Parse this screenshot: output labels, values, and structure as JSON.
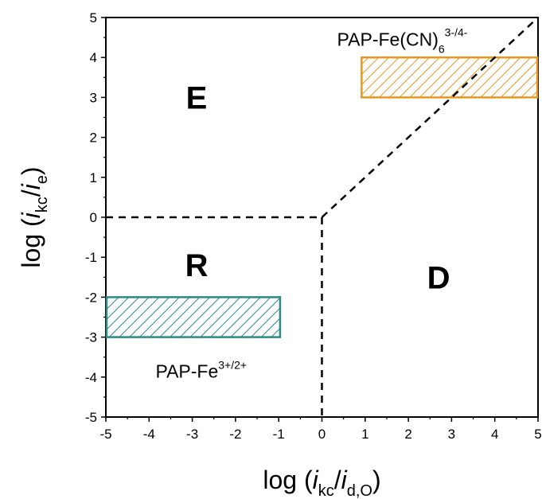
{
  "chart_data": {
    "type": "region_map",
    "xlim": [
      -5,
      5
    ],
    "ylim": [
      -5,
      5
    ],
    "xticks": [
      "-5",
      "-4",
      "-3",
      "-2",
      "-1",
      "0",
      "1",
      "2",
      "3",
      "4",
      "5"
    ],
    "yticks": [
      "-5",
      "-4",
      "-3",
      "-2",
      "-1",
      "0",
      "1",
      "2",
      "3",
      "4",
      "5"
    ],
    "xlabel": {
      "prefix": "log (",
      "i1": "i",
      "sub1": "kc",
      "slash": "/",
      "i2": "i",
      "sub2": "d,O",
      "suffix": ")"
    },
    "ylabel": {
      "prefix": "log (",
      "i1": "i",
      "sub1": "kc",
      "slash": "/",
      "i2": "i",
      "sub2": "e",
      "suffix": ")"
    },
    "regions": [
      {
        "label": "E",
        "x": -2.9,
        "y": 3.0
      },
      {
        "label": "R",
        "x": -2.9,
        "y": -1.2
      },
      {
        "label": "D",
        "x": 2.7,
        "y": -1.5
      }
    ],
    "boundaries": [
      {
        "name": "horizontal",
        "points": [
          [
            -5,
            0
          ],
          [
            0,
            0
          ]
        ]
      },
      {
        "name": "vertical",
        "points": [
          [
            0,
            0
          ],
          [
            0,
            -5
          ]
        ]
      },
      {
        "name": "diagonal",
        "points": [
          [
            0,
            0
          ],
          [
            5,
            5
          ]
        ]
      }
    ],
    "boxes": [
      {
        "name": "PAP-Fe(CN)6",
        "base": "PAP-Fe(CN)",
        "sub": "6",
        "sup": "3-/4-",
        "x": [
          0.9,
          5.0
        ],
        "y": [
          3.0,
          4.0
        ],
        "color": "#e8961f",
        "label_x": 0.35,
        "label_y": 4.45
      },
      {
        "name": "PAP-Fe",
        "base": "PAP-Fe",
        "sub": "",
        "sup": "3+/2+",
        "x": [
          -5.0,
          -0.95
        ],
        "y": [
          -3.0,
          -2.0
        ],
        "color": "#2a8a88",
        "label_x": -3.85,
        "label_y": -3.85
      }
    ],
    "grid": false,
    "legend": "none"
  },
  "colors": {
    "axis": "#000000",
    "boundary": "#000000"
  }
}
